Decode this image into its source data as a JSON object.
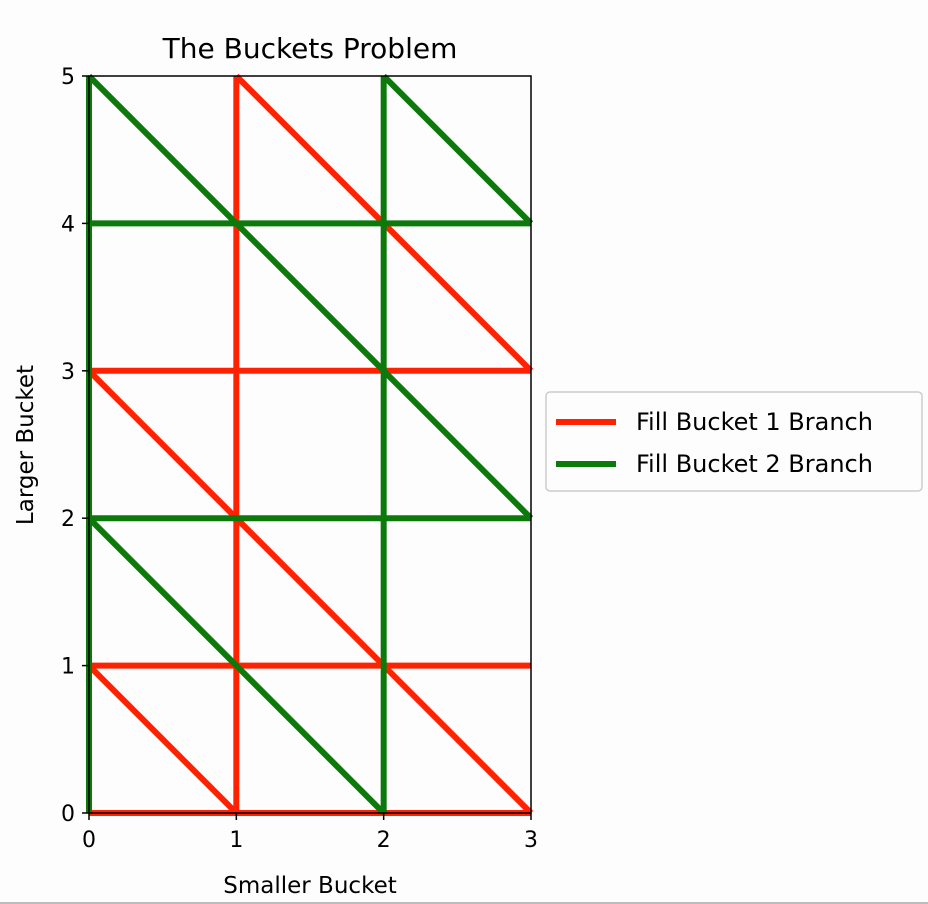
{
  "chart_data": {
    "type": "line",
    "title": "The Buckets Problem",
    "xlabel": "Smaller Bucket",
    "ylabel": "Larger Bucket",
    "xlim": [
      0,
      3
    ],
    "ylim": [
      0,
      5
    ],
    "xticks": [
      "0",
      "1",
      "2",
      "3"
    ],
    "yticks": [
      "0",
      "1",
      "2",
      "3",
      "4",
      "5"
    ],
    "grid": false,
    "legend_position": "center-right-outside",
    "series": [
      {
        "name": "Fill Bucket 1 Branch",
        "color": "#ff2200",
        "segments": [
          [
            [
              0,
              0
            ],
            [
              3,
              0
            ]
          ],
          [
            [
              0,
              1
            ],
            [
              1,
              0
            ]
          ],
          [
            [
              0,
              1
            ],
            [
              3,
              1
            ]
          ],
          [
            [
              0,
              3
            ],
            [
              3,
              3
            ]
          ],
          [
            [
              0,
              3
            ],
            [
              3,
              0
            ]
          ],
          [
            [
              1,
              0
            ],
            [
              1,
              5
            ]
          ],
          [
            [
              1,
              5
            ],
            [
              3,
              3
            ]
          ]
        ]
      },
      {
        "name": "Fill Bucket 2 Branch",
        "color": "#0b7a0b",
        "segments": [
          [
            [
              0,
              0
            ],
            [
              0,
              5
            ]
          ],
          [
            [
              0,
              5
            ],
            [
              3,
              2
            ]
          ],
          [
            [
              0,
              2
            ],
            [
              3,
              2
            ]
          ],
          [
            [
              0,
              2
            ],
            [
              2,
              0
            ]
          ],
          [
            [
              0,
              4
            ],
            [
              3,
              4
            ]
          ],
          [
            [
              2,
              0
            ],
            [
              2,
              5
            ]
          ],
          [
            [
              2,
              5
            ],
            [
              3,
              4
            ]
          ]
        ]
      }
    ]
  }
}
